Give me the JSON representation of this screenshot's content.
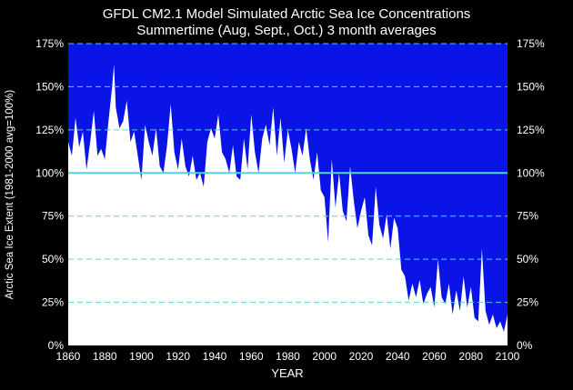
{
  "chart_data": {
    "type": "area",
    "title": "GFDL CM2.1 Model Simulated Arctic Sea Ice Concentrations",
    "subtitle": "Summertime (Aug, Sept., Oct.) 3 month averages",
    "xlabel": "YEAR",
    "ylabel": "Arctic Sea Ice Extent (1981-2000 avg=100%)",
    "xlim": [
      1860,
      2100
    ],
    "ylim": [
      0,
      175
    ],
    "x_ticks": [
      "1860",
      "1880",
      "1900",
      "1920",
      "1940",
      "1960",
      "1980",
      "2000",
      "2020",
      "2040",
      "2060",
      "2080",
      "2100"
    ],
    "y_ticks": [
      "0%",
      "25%",
      "50%",
      "75%",
      "100%",
      "125%",
      "150%",
      "175%"
    ],
    "y_tick_values": [
      0,
      25,
      50,
      75,
      100,
      125,
      150,
      175
    ],
    "reference_line": 100,
    "grid": true,
    "colors": {
      "background": "#000000",
      "plot_fill": "#0a14e6",
      "ice": "#ffffff",
      "grid": "#4fd6d6"
    },
    "series": [
      {
        "x": [
          1860,
          1862,
          1864,
          1866,
          1868,
          1870,
          1872,
          1874,
          1876,
          1878,
          1880,
          1882,
          1884,
          1885,
          1886,
          1888,
          1890,
          1892,
          1894,
          1896,
          1898,
          1900,
          1902,
          1904,
          1906,
          1908,
          1910,
          1912,
          1914,
          1916,
          1918,
          1920,
          1922,
          1924,
          1926,
          1928,
          1930,
          1932,
          1934,
          1936,
          1938,
          1940,
          1942,
          1944,
          1946,
          1948,
          1950,
          1952,
          1954,
          1956,
          1958,
          1960,
          1962,
          1964,
          1966,
          1968,
          1970,
          1972,
          1974,
          1976,
          1978,
          1980,
          1982,
          1984,
          1986,
          1988,
          1990,
          1992,
          1994,
          1996,
          1998,
          2000,
          2002,
          2004,
          2006,
          2008,
          2010,
          2012,
          2014,
          2016,
          2018,
          2020,
          2022,
          2024,
          2026,
          2028,
          2030,
          2032,
          2034,
          2036,
          2038,
          2040,
          2042,
          2044,
          2046,
          2048,
          2050,
          2052,
          2054,
          2056,
          2058,
          2060,
          2062,
          2064,
          2066,
          2068,
          2070,
          2072,
          2074,
          2076,
          2078,
          2080,
          2082,
          2084,
          2086,
          2088,
          2090,
          2092,
          2094,
          2096,
          2098,
          2100
        ],
        "values": [
          118,
          110,
          132,
          115,
          124,
          102,
          118,
          136,
          110,
          114,
          108,
          130,
          150,
          163,
          138,
          126,
          130,
          142,
          118,
          124,
          110,
          96,
          128,
          118,
          110,
          126,
          104,
          100,
          116,
          140,
          112,
          102,
          120,
          104,
          98,
          110,
          96,
          100,
          92,
          118,
          126,
          120,
          134,
          112,
          108,
          100,
          116,
          98,
          96,
          120,
          102,
          134,
          112,
          100,
          120,
          128,
          116,
          138,
          110,
          132,
          106,
          125,
          114,
          100,
          118,
          110,
          126,
          108,
          96,
          112,
          90,
          86,
          60,
          108,
          80,
          100,
          78,
          72,
          104,
          84,
          68,
          78,
          86,
          64,
          58,
          92,
          70,
          62,
          76,
          56,
          74,
          68,
          44,
          40,
          26,
          36,
          28,
          38,
          24,
          30,
          34,
          22,
          50,
          28,
          24,
          36,
          18,
          32,
          20,
          40,
          22,
          34,
          16,
          14,
          56,
          20,
          12,
          18,
          10,
          14,
          8,
          18
        ]
      }
    ]
  }
}
